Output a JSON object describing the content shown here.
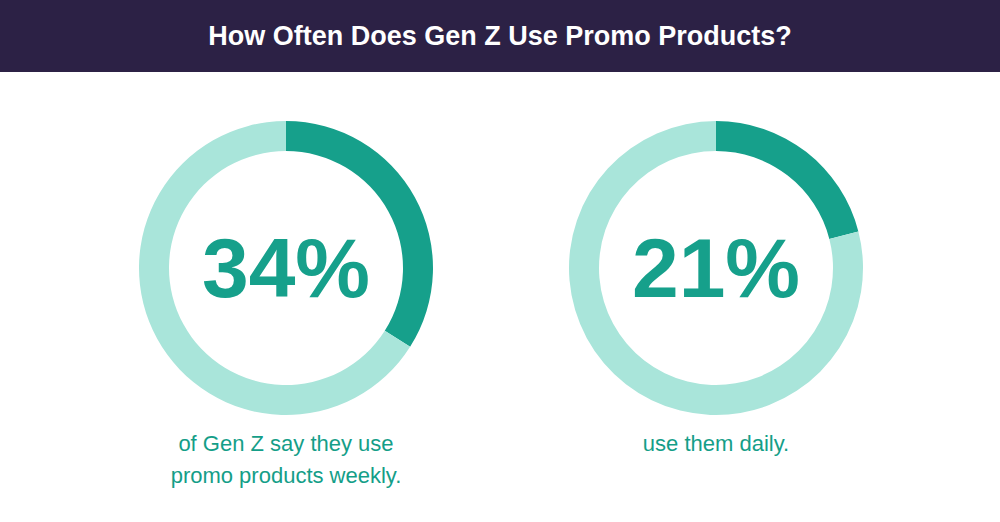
{
  "title": "How Often Does Gen Z Use Promo Products?",
  "chart_data": [
    {
      "type": "donut",
      "values": [
        34,
        66
      ],
      "value_labels": [
        "34%",
        null
      ],
      "colors": [
        "#16a08b",
        "#a9e5da"
      ],
      "data_labels": true,
      "annotation": "of Gen Z say they use promo products weekly."
    },
    {
      "type": "donut",
      "values": [
        21,
        79
      ],
      "value_labels": [
        "21%",
        null
      ],
      "colors": [
        "#16a08b",
        "#a9e5da"
      ],
      "data_labels": true,
      "annotation": "use them daily."
    }
  ]
}
